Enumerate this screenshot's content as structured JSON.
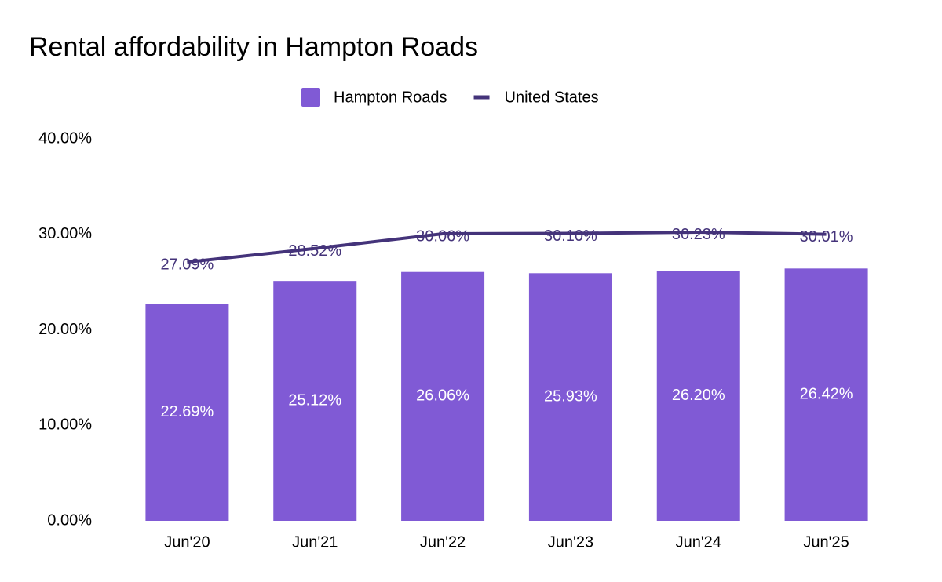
{
  "chart_data": {
    "type": "combo",
    "title": "Rental affordability in Hampton Roads",
    "categories": [
      "Jun'20",
      "Jun'21",
      "Jun'22",
      "Jun'23",
      "Jun'24",
      "Jun'25"
    ],
    "series": [
      {
        "name": "Hampton Roads",
        "type": "bar",
        "color": "#805ad5",
        "values": [
          22.69,
          25.12,
          26.06,
          25.93,
          26.2,
          26.42
        ],
        "value_labels": [
          "22.69%",
          "25.12%",
          "26.06%",
          "25.93%",
          "26.20%",
          "26.42%"
        ]
      },
      {
        "name": "United States",
        "type": "line",
        "color": "#44337a",
        "values": [
          27.09,
          28.52,
          30.06,
          30.1,
          30.23,
          30.01
        ],
        "value_labels": [
          "27.09%",
          "28.52%",
          "30.06%",
          "30.10%",
          "30.23%",
          "30.01%"
        ]
      }
    ],
    "ylim": [
      0,
      40
    ],
    "yticks": [
      {
        "value": 0,
        "label": "0.00%"
      },
      {
        "value": 10,
        "label": "10.00%"
      },
      {
        "value": 20,
        "label": "20.00%"
      },
      {
        "value": 30,
        "label": "30.00%"
      },
      {
        "value": 40,
        "label": "40.00%"
      }
    ],
    "grid": false,
    "legend": "top"
  }
}
